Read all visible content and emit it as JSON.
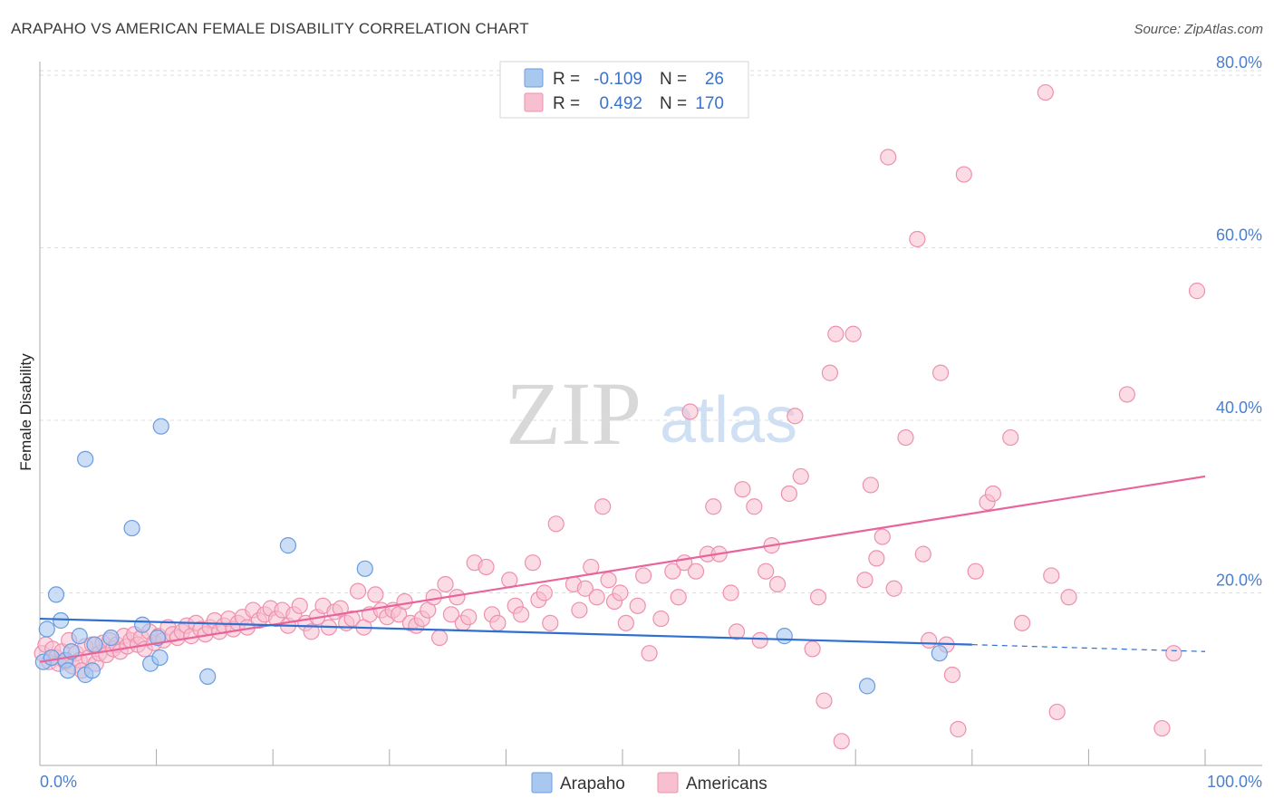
{
  "header": {
    "title": "ARAPAHO VS AMERICAN FEMALE DISABILITY CORRELATION CHART",
    "source": "Source: ZipAtlas.com"
  },
  "watermark": {
    "zip": "ZIP",
    "atlas": "atlas"
  },
  "colors": {
    "arapaho_fill": "#a9c8f0",
    "arapaho_stroke": "#6a9be0",
    "arapaho_line": "#2f6fd0",
    "americans_fill": "#f7bfd0",
    "americans_stroke": "#ee90ae",
    "americans_line": "#e8649a",
    "tick_label": "#4a7fd0",
    "grid": "#dddddd"
  },
  "legend": {
    "r_label": "R =",
    "n_label": "N =",
    "rows": [
      {
        "series": "Arapaho",
        "r": "-0.109",
        "n": "26"
      },
      {
        "series": "Americans",
        "r": "0.492",
        "n": "170"
      }
    ]
  },
  "chart_data": {
    "type": "scatter",
    "title": "ARAPAHO VS AMERICAN FEMALE DISABILITY CORRELATION CHART",
    "xlabel": "",
    "ylabel": "Female Disability",
    "xlim": [
      0,
      100
    ],
    "ylim": [
      0,
      82
    ],
    "x_tick_labels": [
      "0.0%",
      "100.0%"
    ],
    "y_ticks": [
      20,
      40,
      60,
      80
    ],
    "y_tick_labels": [
      "20.0%",
      "40.0%",
      "60.0%",
      "80.0%"
    ],
    "grid": true,
    "legend_position": "bottom-center",
    "series": [
      {
        "name": "Arapaho",
        "trend": {
          "x0": 0,
          "y0": 17.0,
          "x1": 80,
          "y1": 14.0,
          "dash_to": 100,
          "dash_y": 13.2
        },
        "points": [
          [
            0.3,
            12.0
          ],
          [
            0.6,
            15.8
          ],
          [
            1.0,
            12.5
          ],
          [
            1.4,
            19.8
          ],
          [
            1.8,
            16.8
          ],
          [
            2.2,
            12.2
          ],
          [
            2.4,
            11.0
          ],
          [
            2.7,
            13.2
          ],
          [
            3.4,
            15.0
          ],
          [
            3.9,
            10.5
          ],
          [
            4.5,
            11.0
          ],
          [
            3.9,
            35.5
          ],
          [
            4.7,
            14.0
          ],
          [
            6.1,
            14.8
          ],
          [
            7.9,
            27.5
          ],
          [
            8.8,
            16.3
          ],
          [
            9.5,
            11.8
          ],
          [
            10.1,
            14.8
          ],
          [
            10.3,
            12.5
          ],
          [
            10.4,
            39.3
          ],
          [
            14.4,
            10.3
          ],
          [
            21.3,
            25.5
          ],
          [
            27.9,
            22.8
          ],
          [
            63.9,
            15.0
          ],
          [
            71.0,
            9.2
          ],
          [
            77.2,
            13.0
          ]
        ]
      },
      {
        "name": "Americans",
        "trend": {
          "x0": 0,
          "y0": 12.0,
          "x1": 100,
          "y1": 33.5
        },
        "points": [
          [
            0.2,
            13.0
          ],
          [
            0.5,
            14.0
          ],
          [
            0.8,
            12.0
          ],
          [
            1.1,
            13.5
          ],
          [
            1.4,
            12.5
          ],
          [
            1.6,
            11.8
          ],
          [
            1.9,
            13.2
          ],
          [
            2.2,
            12.0
          ],
          [
            2.5,
            14.5
          ],
          [
            2.8,
            11.5
          ],
          [
            3.1,
            13.0
          ],
          [
            3.4,
            12.2
          ],
          [
            3.6,
            11.0
          ],
          [
            3.9,
            13.8
          ],
          [
            4.2,
            12.5
          ],
          [
            4.5,
            14.0
          ],
          [
            4.8,
            11.8
          ],
          [
            5.1,
            13.0
          ],
          [
            5.4,
            14.2
          ],
          [
            5.7,
            12.8
          ],
          [
            6.0,
            14.5
          ],
          [
            6.3,
            13.5
          ],
          [
            6.6,
            14.0
          ],
          [
            6.9,
            13.2
          ],
          [
            7.2,
            15.0
          ],
          [
            7.5,
            13.8
          ],
          [
            7.8,
            14.5
          ],
          [
            8.1,
            15.2
          ],
          [
            8.4,
            14.0
          ],
          [
            8.7,
            14.8
          ],
          [
            9.0,
            13.5
          ],
          [
            9.4,
            15.5
          ],
          [
            9.8,
            14.2
          ],
          [
            10.2,
            15.0
          ],
          [
            10.6,
            14.5
          ],
          [
            11.0,
            16.0
          ],
          [
            11.4,
            15.2
          ],
          [
            11.8,
            14.8
          ],
          [
            12.2,
            15.5
          ],
          [
            12.6,
            16.2
          ],
          [
            13.0,
            15.0
          ],
          [
            13.4,
            16.5
          ],
          [
            13.8,
            15.8
          ],
          [
            14.2,
            15.2
          ],
          [
            14.6,
            16.0
          ],
          [
            15.0,
            16.8
          ],
          [
            15.4,
            15.5
          ],
          [
            15.8,
            16.2
          ],
          [
            16.2,
            17.0
          ],
          [
            16.6,
            15.8
          ],
          [
            17.0,
            16.5
          ],
          [
            17.4,
            17.2
          ],
          [
            17.8,
            16.0
          ],
          [
            18.3,
            18.0
          ],
          [
            18.8,
            16.8
          ],
          [
            19.3,
            17.5
          ],
          [
            19.8,
            18.2
          ],
          [
            20.3,
            17.0
          ],
          [
            20.8,
            18.0
          ],
          [
            21.3,
            16.2
          ],
          [
            21.8,
            17.5
          ],
          [
            22.3,
            18.5
          ],
          [
            22.8,
            16.5
          ],
          [
            23.3,
            15.5
          ],
          [
            23.8,
            17.2
          ],
          [
            24.3,
            18.5
          ],
          [
            24.8,
            16.0
          ],
          [
            25.3,
            17.8
          ],
          [
            25.8,
            18.2
          ],
          [
            26.3,
            16.5
          ],
          [
            26.8,
            17.0
          ],
          [
            27.3,
            20.2
          ],
          [
            27.8,
            16.0
          ],
          [
            28.3,
            17.5
          ],
          [
            28.8,
            19.8
          ],
          [
            29.3,
            18.0
          ],
          [
            29.8,
            17.2
          ],
          [
            30.3,
            18.0
          ],
          [
            30.8,
            17.5
          ],
          [
            31.3,
            19.0
          ],
          [
            31.8,
            16.5
          ],
          [
            32.3,
            16.2
          ],
          [
            32.8,
            17.0
          ],
          [
            33.3,
            18.0
          ],
          [
            33.8,
            19.5
          ],
          [
            34.3,
            14.8
          ],
          [
            34.8,
            21.0
          ],
          [
            35.3,
            17.5
          ],
          [
            35.8,
            19.5
          ],
          [
            36.3,
            16.5
          ],
          [
            36.8,
            17.2
          ],
          [
            37.3,
            23.5
          ],
          [
            38.3,
            23.0
          ],
          [
            38.8,
            17.5
          ],
          [
            39.3,
            16.5
          ],
          [
            40.3,
            21.5
          ],
          [
            40.8,
            18.5
          ],
          [
            41.3,
            17.5
          ],
          [
            42.3,
            23.5
          ],
          [
            42.8,
            19.2
          ],
          [
            43.3,
            20.0
          ],
          [
            43.8,
            16.5
          ],
          [
            44.3,
            28.0
          ],
          [
            45.8,
            21.0
          ],
          [
            46.3,
            18.0
          ],
          [
            46.8,
            20.5
          ],
          [
            47.3,
            23.0
          ],
          [
            47.8,
            19.5
          ],
          [
            48.3,
            30.0
          ],
          [
            48.8,
            21.5
          ],
          [
            49.3,
            19.0
          ],
          [
            49.8,
            20.0
          ],
          [
            50.3,
            16.5
          ],
          [
            51.3,
            18.5
          ],
          [
            51.8,
            22.0
          ],
          [
            52.3,
            13.0
          ],
          [
            53.3,
            17.0
          ],
          [
            54.3,
            22.5
          ],
          [
            54.8,
            19.5
          ],
          [
            55.3,
            23.5
          ],
          [
            55.8,
            41.0
          ],
          [
            56.3,
            22.5
          ],
          [
            57.3,
            24.5
          ],
          [
            57.8,
            30.0
          ],
          [
            58.3,
            24.5
          ],
          [
            59.3,
            20.0
          ],
          [
            59.8,
            15.5
          ],
          [
            60.3,
            32.0
          ],
          [
            61.3,
            30.0
          ],
          [
            61.8,
            14.5
          ],
          [
            62.3,
            22.5
          ],
          [
            62.8,
            25.5
          ],
          [
            63.3,
            21.0
          ],
          [
            64.3,
            31.5
          ],
          [
            64.8,
            40.5
          ],
          [
            65.3,
            33.5
          ],
          [
            66.3,
            13.5
          ],
          [
            66.8,
            19.5
          ],
          [
            67.3,
            7.5
          ],
          [
            67.8,
            45.5
          ],
          [
            68.3,
            50.0
          ],
          [
            68.8,
            2.8
          ],
          [
            69.8,
            50.0
          ],
          [
            70.8,
            21.5
          ],
          [
            71.3,
            32.5
          ],
          [
            71.8,
            24.0
          ],
          [
            72.3,
            26.5
          ],
          [
            72.8,
            70.5
          ],
          [
            73.3,
            20.5
          ],
          [
            74.3,
            38.0
          ],
          [
            75.3,
            61.0
          ],
          [
            75.8,
            24.5
          ],
          [
            76.3,
            14.5
          ],
          [
            77.3,
            45.5
          ],
          [
            77.8,
            14.0
          ],
          [
            78.3,
            10.5
          ],
          [
            78.8,
            4.2
          ],
          [
            79.3,
            68.5
          ],
          [
            80.3,
            22.5
          ],
          [
            81.3,
            30.5
          ],
          [
            81.8,
            31.5
          ],
          [
            83.3,
            38.0
          ],
          [
            84.3,
            16.5
          ],
          [
            86.3,
            78.0
          ],
          [
            86.8,
            22.0
          ],
          [
            87.3,
            6.2
          ],
          [
            88.3,
            19.5
          ],
          [
            93.3,
            43.0
          ],
          [
            96.3,
            4.3
          ],
          [
            97.3,
            13.0
          ],
          [
            99.3,
            55.0
          ]
        ]
      }
    ]
  },
  "bottom_legend": [
    "Arapaho",
    "Americans"
  ]
}
